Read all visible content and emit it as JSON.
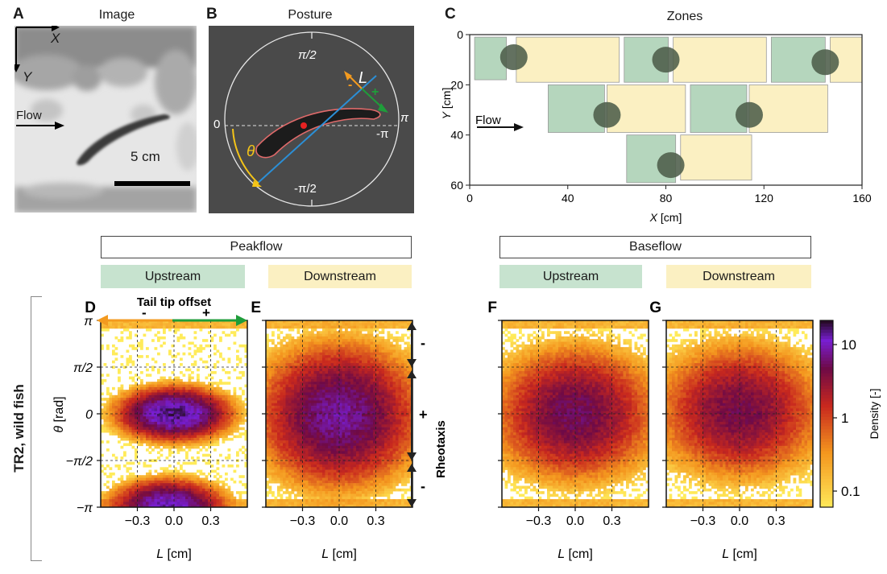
{
  "panels": {
    "A": {
      "letter": "A",
      "title": "Image",
      "axis_x": "X",
      "axis_y": "Y",
      "flow": "Flow",
      "scalebar": "5 cm"
    },
    "B": {
      "letter": "B",
      "title": "Posture",
      "pi2": "π/2",
      "mpi2": "-π/2",
      "pi": "π",
      "mpi": "-π",
      "zero": "0",
      "theta": "θ",
      "L": "L",
      "minus": "-",
      "plus": "+"
    },
    "C": {
      "letter": "C",
      "title": "Zones",
      "flow": "Flow",
      "xlabel_var": "X",
      "xlabel_unit": " [cm]",
      "ylabel_var": "Y",
      "ylabel_unit": " [cm]",
      "xticks": [
        "0",
        "40",
        "80",
        "120",
        "160"
      ],
      "yticks": [
        "0",
        "20",
        "40",
        "60"
      ]
    }
  },
  "groups": {
    "peakflow": "Peakflow",
    "baseflow": "Baseflow",
    "upstream": "Upstream",
    "downstream": "Downstream"
  },
  "row_label": "TR2, wild fish",
  "tail_tip": {
    "label": "Tail tip offset",
    "minus": "-",
    "plus": "+"
  },
  "rheotaxis": {
    "label": "Rheotaxis",
    "plus": "+",
    "minus": "-"
  },
  "heatmaps": {
    "letters": [
      "D",
      "E",
      "F",
      "G"
    ],
    "ylabel_var": "θ",
    "ylabel_unit": " [rad]",
    "xlabel_var": "L",
    "xlabel_unit": " [cm]",
    "yticks": [
      "π",
      "π/2",
      "0",
      "−π/2",
      "−π"
    ],
    "xticks": [
      "−0.3",
      "0.0",
      "0.3"
    ]
  },
  "colorbar": {
    "label": "Density [-]",
    "ticks": [
      "10",
      "1",
      "0.1"
    ]
  },
  "colors": {
    "upstream": "#c7e3cf",
    "downstream": "#fbf0c2",
    "posture_bg": "#4a4a4a",
    "orange": "#f39a1f",
    "green": "#1f9d3a",
    "blue": "#2b8fd6",
    "yellow": "#f5c518"
  },
  "chart_data": [
    {
      "type": "heatmap",
      "title": "",
      "xlabel": "L [cm]",
      "ylabel": "θ [rad]",
      "xlim": [
        -0.6,
        0.6
      ],
      "ylim": [
        -3.1416,
        3.1416
      ],
      "log_color": true,
      "modes": [
        {
          "x": 0.0,
          "y": 0.0,
          "peak": 20
        },
        {
          "x": -0.05,
          "y": -3.1,
          "peak": 15
        }
      ]
    },
    {
      "type": "heatmap",
      "title": "",
      "xlabel": "L [cm]",
      "ylabel": "",
      "xlim": [
        -0.6,
        0.6
      ],
      "ylim": [
        -3.1416,
        3.1416
      ],
      "log_color": true,
      "modes": [
        {
          "x": 0.0,
          "y": 0.3,
          "peak": 5
        },
        {
          "x": 0.0,
          "y": -0.4,
          "peak": 5
        }
      ]
    },
    {
      "type": "heatmap",
      "title": "",
      "xlabel": "L [cm]",
      "ylabel": "",
      "xlim": [
        -0.6,
        0.6
      ],
      "ylim": [
        -3.1416,
        3.1416
      ],
      "log_color": true,
      "modes": [
        {
          "x": 0.0,
          "y": 0.0,
          "peak": 6
        }
      ]
    },
    {
      "type": "heatmap",
      "title": "",
      "xlabel": "L [cm]",
      "ylabel": "",
      "xlim": [
        -0.6,
        0.6
      ],
      "ylim": [
        -3.1416,
        3.1416
      ],
      "log_color": true,
      "modes": [
        {
          "x": 0.0,
          "y": 0.1,
          "peak": 5
        }
      ]
    },
    {
      "type": "scatter",
      "title": "Zones",
      "xlabel": "X [cm]",
      "ylabel": "Y [cm]",
      "xlim": [
        0,
        160
      ],
      "ylim": [
        60,
        0
      ]
    }
  ]
}
